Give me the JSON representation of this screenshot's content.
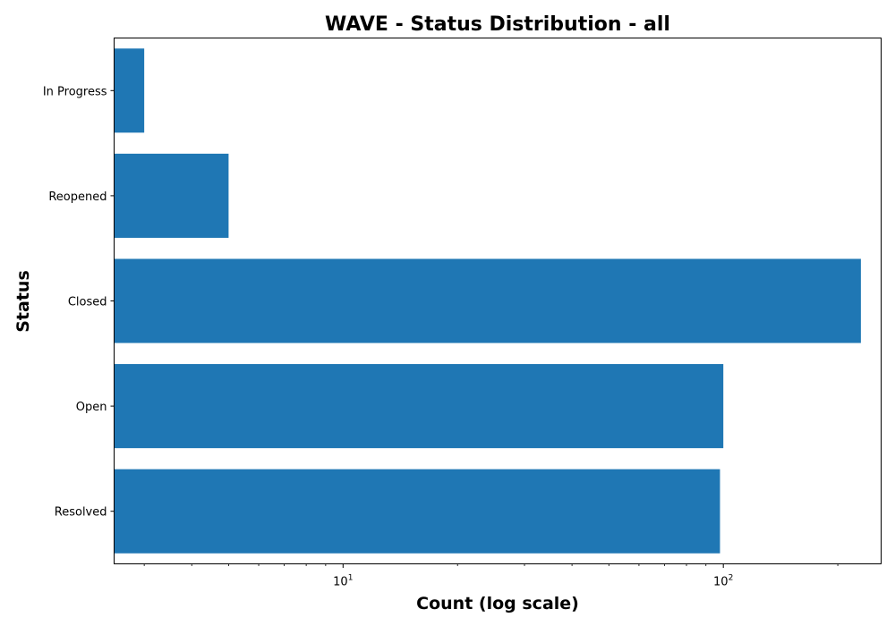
{
  "chart_data": {
    "type": "bar",
    "orientation": "horizontal",
    "title": "WAVE - Status Distribution - all",
    "xlabel": "Count (log scale)",
    "ylabel": "Status",
    "x_scale": "log",
    "xlim": [
      2.5,
      260
    ],
    "x_ticks": [
      {
        "value": 10,
        "base": "10",
        "exponent": "1"
      },
      {
        "value": 100,
        "base": "10",
        "exponent": "2"
      }
    ],
    "categories": [
      "In Progress",
      "Reopened",
      "Closed",
      "Open",
      "Resolved"
    ],
    "values": [
      3,
      5,
      230,
      100,
      98
    ],
    "color": "#1f77b4",
    "grid": false,
    "legend": "none"
  }
}
